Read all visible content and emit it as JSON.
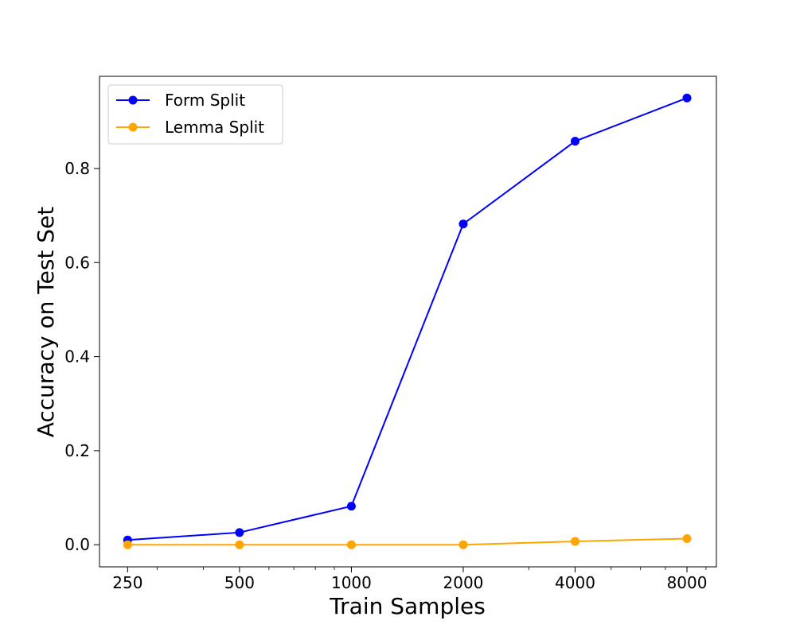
{
  "chart_data": {
    "type": "line",
    "title": "",
    "xlabel": "Train Samples",
    "ylabel": "Accuracy on Test Set",
    "x_scale": "log",
    "x": [
      250,
      500,
      1000,
      2000,
      4000,
      8000
    ],
    "x_tick_labels": [
      "250",
      "500",
      "1000",
      "2000",
      "4000",
      "8000"
    ],
    "y_ticks": [
      0.0,
      0.2,
      0.4,
      0.6,
      0.8
    ],
    "y_tick_labels": [
      "0.0",
      "0.2",
      "0.4",
      "0.6",
      "0.8"
    ],
    "xlim": [
      210,
      9600
    ],
    "ylim": [
      -0.047,
      0.996
    ],
    "grid": false,
    "legend_position": "top-left",
    "series": [
      {
        "name": "Form Split",
        "color": "#0000ff",
        "values": [
          0.01,
          0.026,
          0.082,
          0.682,
          0.858,
          0.95
        ]
      },
      {
        "name": "Lemma Split",
        "color": "#ffa500",
        "values": [
          0.0,
          0.0,
          0.0,
          0.0,
          0.007,
          0.013
        ]
      }
    ]
  }
}
